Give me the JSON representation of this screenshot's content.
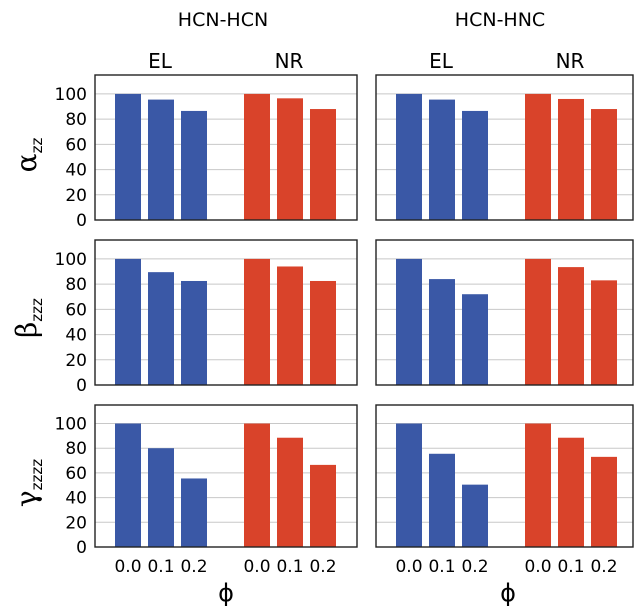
{
  "chart_data": {
    "type": "bar",
    "column_titles": [
      "HCN-HCN",
      "HCN-HNC"
    ],
    "groups": [
      "EL",
      "NR"
    ],
    "categories": [
      "0.0",
      "0.1",
      "0.2"
    ],
    "xlabel": "ϕ",
    "ylim": [
      0,
      115
    ],
    "yticks": [
      0,
      20,
      40,
      60,
      80,
      100
    ],
    "grid": "horizontal",
    "colors": {
      "EL": "#3a58a6",
      "NR": "#d9432a"
    },
    "rows": [
      {
        "ylabel": "α",
        "ylabel_sub": "zz",
        "panels": [
          {
            "column": "HCN-HCN",
            "EL": [
              100,
              95.5,
              86.5
            ],
            "NR": [
              100,
              96.5,
              88
            ]
          },
          {
            "column": "HCN-HNC",
            "EL": [
              100,
              95.5,
              86.5
            ],
            "NR": [
              100,
              96,
              88
            ]
          }
        ]
      },
      {
        "ylabel": "β",
        "ylabel_sub": "zzz",
        "panels": [
          {
            "column": "HCN-HCN",
            "EL": [
              100,
              89.5,
              82.5
            ],
            "NR": [
              100,
              94,
              82.5
            ]
          },
          {
            "column": "HCN-HNC",
            "EL": [
              100,
              84,
              72
            ],
            "NR": [
              100,
              93.5,
              83
            ]
          }
        ]
      },
      {
        "ylabel": "γ",
        "ylabel_sub": "zzzz",
        "panels": [
          {
            "column": "HCN-HCN",
            "EL": [
              100,
              80,
              55.5
            ],
            "NR": [
              100,
              88.5,
              66.5
            ]
          },
          {
            "column": "HCN-HNC",
            "EL": [
              100,
              75.5,
              50.5
            ],
            "NR": [
              100,
              88.5,
              73
            ]
          }
        ]
      }
    ]
  }
}
